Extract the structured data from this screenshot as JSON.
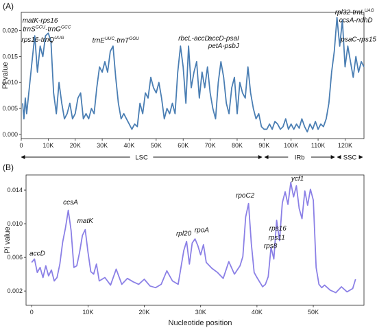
{
  "chart_data": [
    {
      "panel": "(A)",
      "type": "line",
      "ylabel": "Pi value",
      "xlim": [
        0,
        127
      ],
      "ylim": [
        -0.0008,
        0.0235
      ],
      "yticks": [
        0.0,
        0.005,
        0.01,
        0.015,
        0.02
      ],
      "ytick_labels": [
        "0.000",
        "0.005",
        "0.010",
        "0.015",
        "0.020"
      ],
      "xticks": [
        0,
        10,
        20,
        30,
        40,
        50,
        60,
        70,
        80,
        90,
        100,
        110,
        120
      ],
      "xtick_labels": [
        "0",
        "10K",
        "20K",
        "30K",
        "40K",
        "50K",
        "60K",
        "70K",
        "80K",
        "90K",
        "100K",
        "110K",
        "120K"
      ],
      "color": "#4a7eb3",
      "series": [
        {
          "x": [
            0.5,
            1,
            1.5,
            2,
            3,
            4,
            5,
            6,
            7,
            8,
            9,
            10,
            11,
            12,
            13,
            14,
            15,
            16,
            17,
            18,
            19,
            20,
            21,
            22,
            23,
            24,
            25,
            26,
            27,
            28,
            29,
            30,
            31,
            32,
            33,
            34,
            35,
            36,
            37,
            38,
            39,
            40,
            41,
            42,
            43,
            44,
            45,
            46,
            47,
            48,
            49,
            50,
            51,
            52,
            53,
            54,
            55,
            56,
            57,
            58,
            59,
            60,
            61,
            62,
            63,
            64,
            65,
            66,
            67,
            68,
            69,
            70,
            71,
            72,
            73,
            74,
            75,
            76,
            77,
            78,
            79,
            80,
            81,
            82,
            83,
            84,
            85,
            86,
            87,
            88,
            89,
            90,
            91,
            92,
            93,
            94,
            95,
            96,
            97,
            98,
            99,
            100,
            101,
            102,
            103,
            104,
            105,
            106,
            107,
            108,
            109,
            110,
            111,
            112,
            113,
            114,
            115,
            116,
            117,
            118,
            119,
            120,
            121,
            122,
            123,
            124,
            125,
            126,
            127
          ],
          "y": [
            0.006,
            0.003,
            0.007,
            0.004,
            0.009,
            0.014,
            0.019,
            0.012,
            0.017,
            0.015,
            0.019,
            0.0195,
            0.018,
            0.008,
            0.004,
            0.01,
            0.006,
            0.003,
            0.004,
            0.006,
            0.003,
            0.004,
            0.007,
            0.008,
            0.003,
            0.004,
            0.003,
            0.005,
            0.004,
            0.009,
            0.013,
            0.012,
            0.014,
            0.012,
            0.016,
            0.017,
            0.011,
            0.006,
            0.003,
            0.004,
            0.003,
            0.002,
            0.001,
            0.002,
            0.0015,
            0.006,
            0.004,
            0.008,
            0.007,
            0.011,
            0.009,
            0.008,
            0.01,
            0.007,
            0.003,
            0.005,
            0.004,
            0.006,
            0.004,
            0.012,
            0.017,
            0.013,
            0.006,
            0.017,
            0.009,
            0.012,
            0.014,
            0.007,
            0.012,
            0.009,
            0.013,
            0.008,
            0.005,
            0.003,
            0.01,
            0.014,
            0.011,
            0.006,
            0.004,
            0.009,
            0.011,
            0.004,
            0.01,
            0.008,
            0.007,
            0.013,
            0.008,
            0.005,
            0.003,
            0.004,
            0.0015,
            0.001,
            0.001,
            0.002,
            0.001,
            0.0025,
            0.002,
            0.001,
            0.0015,
            0.003,
            0.001,
            0.002,
            0.001,
            0.002,
            0.0012,
            0.003,
            0.0015,
            0.0005,
            0.002,
            0.001,
            0.0025,
            0.001,
            0.002,
            0.0015,
            0.003,
            0.006,
            0.012,
            0.016,
            0.0225,
            0.017,
            0.022,
            0.013,
            0.017,
            0.014,
            0.011,
            0.015,
            0.012,
            0.014,
            0.013
          ]
        }
      ],
      "annotations": [
        {
          "x": 7,
          "y": 0.0215,
          "segments": [
            {
              "t": "matK-rps16"
            }
          ]
        },
        {
          "x": 9.5,
          "y": 0.0199,
          "segments": [
            {
              "t": "trnS"
            },
            {
              "t": "GCU",
              "sup": true
            },
            {
              "t": "-trnG"
            },
            {
              "t": "GCC",
              "sup": true
            }
          ]
        },
        {
          "x": 8,
          "y": 0.0178,
          "segments": [
            {
              "t": "rps16-trnQ"
            },
            {
              "t": "UUG",
              "sup": true
            }
          ]
        },
        {
          "x": 35,
          "y": 0.0177,
          "segments": [
            {
              "t": "trnE"
            },
            {
              "t": "UUC",
              "sup": true
            },
            {
              "t": "-trnT"
            },
            {
              "t": "GGU",
              "sup": true
            }
          ]
        },
        {
          "x": 64,
          "y": 0.0181,
          "segments": [
            {
              "t": "rbcL-accD"
            }
          ]
        },
        {
          "x": 75,
          "y": 0.0181,
          "segments": [
            {
              "t": "accD-psaI"
            }
          ]
        },
        {
          "x": 75,
          "y": 0.0166,
          "segments": [
            {
              "t": "petA-psbJ"
            }
          ]
        },
        {
          "x": 123.5,
          "y": 0.0231,
          "segments": [
            {
              "t": "rpl32-trnL"
            },
            {
              "t": "UAG",
              "sup": true
            }
          ]
        },
        {
          "x": 124,
          "y": 0.0216,
          "segments": [
            {
              "t": "ccsA-ndhD"
            }
          ]
        },
        {
          "x": 125,
          "y": 0.0179,
          "segments": [
            {
              "t": "psaC-rps15"
            }
          ]
        }
      ],
      "regions": [
        {
          "label": "LSC",
          "x0": 0,
          "x1": 89.7
        },
        {
          "label": "IRb",
          "x0": 89.7,
          "x1": 116.6
        },
        {
          "label": "SSC",
          "x0": 116.6,
          "x1": 127
        }
      ]
    },
    {
      "panel": "(B)",
      "type": "line",
      "xlabel": "Nucleotide position",
      "ylabel": "Pi value",
      "xlim": [
        -1,
        59
      ],
      "ylim": [
        0.0003,
        0.0158
      ],
      "yticks": [
        0.002,
        0.006,
        0.01,
        0.014
      ],
      "ytick_labels": [
        "0.002",
        "0.006",
        "0.010",
        "0.014"
      ],
      "xticks": [
        0,
        10,
        20,
        30,
        40,
        50
      ],
      "xtick_labels": [
        "0",
        "10K",
        "20K",
        "30K",
        "40K",
        "50K"
      ],
      "color": "#8b80e6",
      "series": [
        {
          "x": [
            0,
            0.5,
            1,
            1.5,
            2,
            2.5,
            3,
            3.5,
            4,
            4.5,
            5,
            5.5,
            6,
            6.5,
            7,
            7.5,
            8,
            8.5,
            9,
            9.5,
            10,
            10.5,
            11,
            11.5,
            12,
            13,
            14,
            15,
            16,
            17,
            18,
            19,
            20,
            21,
            22,
            23,
            24,
            25,
            26,
            27,
            27.5,
            28,
            28.5,
            29,
            29.5,
            30,
            30.5,
            31,
            32,
            33,
            34,
            35,
            36,
            37,
            37.5,
            38,
            38.5,
            39,
            39.5,
            40,
            41,
            41.5,
            42,
            42.5,
            43,
            43.5,
            44,
            44.5,
            45,
            45.5,
            46,
            46.5,
            47,
            47.5,
            48,
            48.5,
            49,
            49.5,
            50,
            50.5,
            51,
            51.5,
            52,
            53,
            54,
            55,
            56,
            57,
            57.5
          ],
          "y": [
            0.0054,
            0.0058,
            0.0042,
            0.0048,
            0.0036,
            0.005,
            0.0038,
            0.0045,
            0.0032,
            0.0036,
            0.0052,
            0.0078,
            0.0095,
            0.0116,
            0.0092,
            0.0048,
            0.005,
            0.0066,
            0.0086,
            0.0093,
            0.0066,
            0.0043,
            0.004,
            0.0052,
            0.0032,
            0.0036,
            0.0027,
            0.0046,
            0.0028,
            0.0035,
            0.0031,
            0.0028,
            0.0034,
            0.0026,
            0.0024,
            0.0028,
            0.0044,
            0.0032,
            0.0028,
            0.0068,
            0.0079,
            0.0052,
            0.0077,
            0.0082,
            0.0074,
            0.0063,
            0.0075,
            0.0054,
            0.0047,
            0.0042,
            0.0035,
            0.0055,
            0.004,
            0.005,
            0.0061,
            0.0108,
            0.0124,
            0.0076,
            0.0042,
            0.0036,
            0.0025,
            0.0028,
            0.0037,
            0.0072,
            0.0058,
            0.0104,
            0.008,
            0.0125,
            0.0138,
            0.0123,
            0.0149,
            0.0132,
            0.0145,
            0.0118,
            0.0106,
            0.0139,
            0.0122,
            0.0141,
            0.0128,
            0.0048,
            0.0028,
            0.0024,
            0.0027,
            0.0021,
            0.0018,
            0.0025,
            0.0019,
            0.0023,
            0.0034
          ]
        }
      ],
      "annotations": [
        {
          "x": 1,
          "y": 0.0062,
          "segments": [
            {
              "t": "accD"
            }
          ]
        },
        {
          "x": 6.9,
          "y": 0.0123,
          "segments": [
            {
              "t": "ccsA"
            }
          ]
        },
        {
          "x": 9.5,
          "y": 0.0101,
          "segments": [
            {
              "t": "matK"
            }
          ]
        },
        {
          "x": 27,
          "y": 0.0086,
          "segments": [
            {
              "t": "rpl20"
            }
          ]
        },
        {
          "x": 30.2,
          "y": 0.009,
          "segments": [
            {
              "t": "rpoA"
            }
          ]
        },
        {
          "x": 37.9,
          "y": 0.0131,
          "segments": [
            {
              "t": "rpoC2"
            }
          ]
        },
        {
          "x": 43.7,
          "y": 0.0092,
          "segments": [
            {
              "t": "rps16"
            }
          ]
        },
        {
          "x": 43.5,
          "y": 0.0081,
          "segments": [
            {
              "t": "rps11"
            }
          ]
        },
        {
          "x": 42.4,
          "y": 0.0071,
          "segments": [
            {
              "t": "rps8"
            }
          ]
        },
        {
          "x": 47.2,
          "y": 0.0151,
          "segments": [
            {
              "t": "ycf1"
            }
          ]
        }
      ]
    }
  ]
}
